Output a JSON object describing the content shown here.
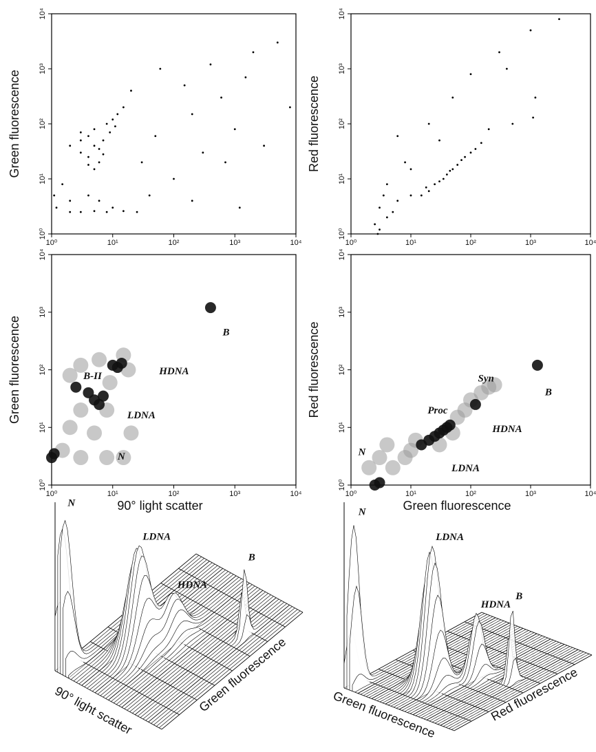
{
  "chart_data": [
    {
      "type": "scatter",
      "ylabel": "Green fluorescence",
      "log": true,
      "xlim": [
        1,
        10000
      ],
      "ylim": [
        1,
        10000
      ],
      "xticks": [
        {
          "value": 1,
          "label": "10⁰"
        },
        {
          "value": 10,
          "label": "10¹"
        },
        {
          "value": 100,
          "label": "10²"
        },
        {
          "value": 1000,
          "label": "10³"
        },
        {
          "value": 10000,
          "label": "10⁴"
        }
      ],
      "yticks": [
        {
          "value": 1,
          "label": "10⁰"
        },
        {
          "value": 10,
          "label": "10¹"
        },
        {
          "value": 100,
          "label": "10²"
        },
        {
          "value": 1000,
          "label": "10³"
        },
        {
          "value": 10000,
          "label": "10⁴"
        }
      ],
      "series": [
        {
          "color": "#000000",
          "x": [
            3,
            4,
            5,
            6,
            4,
            5,
            7,
            8,
            10,
            12,
            3,
            2,
            6,
            5,
            9,
            15,
            4,
            7,
            3,
            11,
            1.2,
            2,
            3,
            5,
            8,
            15,
            25,
            1.1,
            1.5,
            2,
            4,
            6,
            10,
            30,
            50,
            100,
            200,
            300,
            400,
            600,
            1000,
            1500,
            2000,
            3000,
            5000,
            8000,
            20,
            60,
            150,
            700,
            40,
            200,
            1200
          ],
          "y": [
            30,
            25,
            40,
            20,
            60,
            80,
            50,
            100,
            120,
            150,
            50,
            40,
            35,
            15,
            70,
            200,
            18,
            28,
            70,
            90,
            3,
            2.5,
            2.5,
            2.6,
            2.5,
            2.6,
            2.5,
            5,
            8,
            4,
            5,
            4,
            3,
            20,
            60,
            10,
            150,
            30,
            1200,
            300,
            80,
            700,
            2000,
            40,
            3000,
            200,
            400,
            1000,
            500,
            20,
            5,
            4,
            3
          ]
        }
      ]
    },
    {
      "type": "scatter",
      "ylabel": "Red fluorescence",
      "log": true,
      "xlim": [
        1,
        10000
      ],
      "ylim": [
        1,
        10000
      ],
      "xticks": [
        {
          "value": 1,
          "label": "10⁰"
        },
        {
          "value": 10,
          "label": "10¹"
        },
        {
          "value": 100,
          "label": "10²"
        },
        {
          "value": 1000,
          "label": "10³"
        },
        {
          "value": 10000,
          "label": "10⁴"
        }
      ],
      "yticks": [
        {
          "value": 1,
          "label": "10⁰"
        },
        {
          "value": 10,
          "label": "10¹"
        },
        {
          "value": 100,
          "label": "10²"
        },
        {
          "value": 1000,
          "label": "10³"
        },
        {
          "value": 10000,
          "label": "10⁴"
        }
      ],
      "series": [
        {
          "color": "#000000",
          "x": [
            15,
            20,
            25,
            30,
            40,
            50,
            60,
            70,
            80,
            100,
            120,
            150,
            18,
            35,
            45,
            3,
            2.5,
            4,
            3,
            5,
            2.8,
            3.5,
            4,
            6,
            10,
            8,
            20,
            50,
            100,
            300,
            1000,
            3000,
            1100,
            1200,
            500,
            200,
            30,
            10,
            400,
            6
          ],
          "y": [
            5,
            6,
            8,
            9,
            12,
            15,
            18,
            22,
            25,
            30,
            35,
            45,
            7,
            10,
            14,
            1.2,
            1.5,
            2,
            3,
            2.5,
            1,
            5,
            8,
            4,
            5,
            20,
            100,
            300,
            800,
            2000,
            5000,
            8000,
            130,
            300,
            100,
            80,
            50,
            15,
            1000,
            60
          ]
        }
      ]
    },
    {
      "type": "density",
      "xlabel": "90° light scatter",
      "ylabel": "Green fluorescence",
      "log": true,
      "xlim": [
        1,
        10000
      ],
      "ylim": [
        1,
        10000
      ],
      "xticks": [
        {
          "value": 1,
          "label": "10⁰"
        },
        {
          "value": 10,
          "label": "10¹"
        },
        {
          "value": 100,
          "label": "10²"
        },
        {
          "value": 1000,
          "label": "10³"
        },
        {
          "value": 10000,
          "label": "10⁴"
        }
      ],
      "yticks": [
        {
          "value": 1,
          "label": "10⁰"
        },
        {
          "value": 10,
          "label": "10¹"
        },
        {
          "value": 100,
          "label": "10²"
        },
        {
          "value": 1000,
          "label": "10³"
        },
        {
          "value": 10000,
          "label": "10⁴"
        }
      ],
      "series": [
        {
          "color": "#9a9a9a",
          "x": [
            3,
            8,
            2,
            3,
            6,
            9,
            15,
            18,
            1.5,
            3,
            8,
            15,
            5,
            20,
            2
          ],
          "y": [
            20,
            20,
            80,
            120,
            150,
            60,
            180,
            100,
            4,
            3,
            3,
            3,
            8,
            8,
            10
          ]
        },
        {
          "color": "#111111",
          "x": [
            5,
            6,
            4,
            7,
            10,
            12,
            14,
            2.5,
            1,
            1.1,
            400
          ],
          "y": [
            30,
            25,
            40,
            35,
            120,
            110,
            130,
            50,
            3,
            3.5,
            1200
          ]
        }
      ],
      "annotations": [
        "B",
        "B-II",
        "HDNA",
        "LDNA",
        "N"
      ]
    },
    {
      "type": "density",
      "xlabel": "Green fluorescence",
      "ylabel": "Red fluorescence",
      "log": true,
      "xlim": [
        1,
        10000
      ],
      "ylim": [
        1,
        10000
      ],
      "xticks": [
        {
          "value": 1,
          "label": "10⁰"
        },
        {
          "value": 10,
          "label": "10¹"
        },
        {
          "value": 100,
          "label": "10²"
        },
        {
          "value": 1000,
          "label": "10³"
        },
        {
          "value": 10000,
          "label": "10⁴"
        }
      ],
      "yticks": [
        {
          "value": 1,
          "label": "10⁰"
        },
        {
          "value": 10,
          "label": "10¹"
        },
        {
          "value": 100,
          "label": "10²"
        },
        {
          "value": 1000,
          "label": "10³"
        },
        {
          "value": 10000,
          "label": "10⁴"
        }
      ],
      "series": [
        {
          "color": "#9a9a9a",
          "x": [
            10,
            12,
            60,
            80,
            100,
            150,
            200,
            250,
            2,
            3,
            5,
            4,
            8,
            50,
            30
          ],
          "y": [
            4,
            6,
            15,
            20,
            30,
            40,
            50,
            55,
            2,
            3,
            2,
            5,
            3,
            8,
            5
          ]
        },
        {
          "color": "#111111",
          "x": [
            15,
            20,
            25,
            30,
            35,
            40,
            45,
            120,
            1300,
            2.5,
            3
          ],
          "y": [
            5,
            6,
            7,
            8,
            9,
            10,
            11,
            25,
            120,
            1,
            1.1
          ]
        }
      ],
      "annotations": [
        "Syn",
        "B",
        "Proc",
        "HDNA",
        "LDNA",
        "N"
      ]
    },
    {
      "type": "surface",
      "xlabel": "90° light scatter",
      "ylabel": "Green fluorescence",
      "annotations": [
        "N",
        "LDNA",
        "HDNA",
        "B"
      ]
    },
    {
      "type": "surface",
      "xlabel": "Green fluorescence",
      "ylabel": "Red fluorescence",
      "annotations": [
        "N",
        "LDNA",
        "HDNA",
        "B"
      ]
    }
  ]
}
